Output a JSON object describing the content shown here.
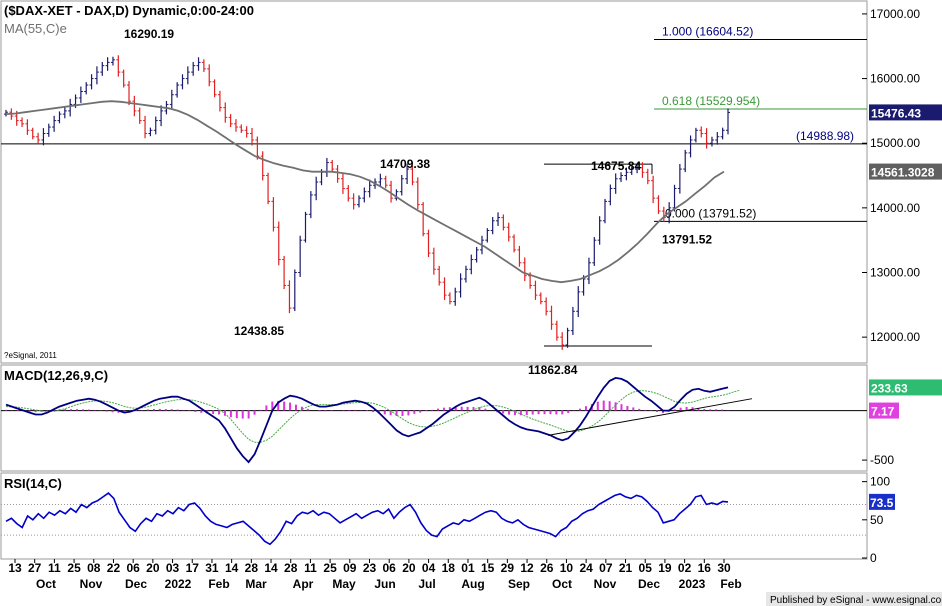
{
  "chart_data": [
    {
      "type": "candlestick",
      "title": "($DAX-XET - DAX,D) Dynamic,0:00-24:00",
      "indicator": "MA(55,C)e",
      "watermark": "?eSignal, 2011",
      "ylim": [
        11600,
        17200
      ],
      "yticks": [
        17000,
        16000,
        15000,
        14000,
        13000,
        12000
      ],
      "ytick_labels": [
        "17000.00",
        "16000.00",
        "15000.00",
        "14000.00",
        "13000.00",
        "12000.00"
      ],
      "last_price": {
        "value": 15476.43,
        "label": "15476.43"
      },
      "ma_value": {
        "value": 14561.3028,
        "label": "14561.3028"
      },
      "fib_levels": [
        {
          "ratio_label": "1.000 (16604.52)",
          "value": 16604.52
        },
        {
          "ratio_label": "0.618 (15529.954)",
          "value": 15529.954
        },
        {
          "ratio_label": "0.000 (13791.52)",
          "value": 13791.52
        }
      ],
      "horizontal_line": {
        "value": 14988.98,
        "label": "(14988.98)"
      },
      "annotations": [
        {
          "label": "16290.19",
          "value": 16290.19
        },
        {
          "label": "12438.85",
          "value": 12438.85
        },
        {
          "label": "14709.38",
          "value": 14709.38
        },
        {
          "label": "14675.84",
          "value": 14675.84
        },
        {
          "label": "13791.52",
          "value": 13791.52
        },
        {
          "label": "11862.84",
          "value": 11862.84
        }
      ],
      "support_lines": [
        {
          "value": 14675.84
        },
        {
          "value": 11862.84
        }
      ],
      "closes": [
        15480,
        15420,
        15350,
        15300,
        15200,
        15100,
        15050,
        15150,
        15250,
        15350,
        15450,
        15500,
        15600,
        15700,
        15800,
        15900,
        16000,
        16100,
        16200,
        16250,
        16290,
        16100,
        15900,
        15650,
        15500,
        15350,
        15150,
        15200,
        15350,
        15500,
        15600,
        15750,
        15900,
        16000,
        16100,
        16200,
        16250,
        16150,
        15950,
        15750,
        15550,
        15400,
        15300,
        15250,
        15200,
        15150,
        15050,
        14800,
        14500,
        14100,
        13700,
        13200,
        12800,
        12450,
        13000,
        13500,
        13900,
        14200,
        14400,
        14550,
        14700,
        14600,
        14450,
        14300,
        14150,
        14050,
        14150,
        14250,
        14350,
        14400,
        14450,
        14350,
        14150,
        14250,
        14450,
        14600,
        14400,
        14050,
        13600,
        13300,
        13050,
        12850,
        12650,
        12550,
        12700,
        12900,
        13050,
        13200,
        13350,
        13500,
        13650,
        13800,
        13850,
        13700,
        13550,
        13350,
        13150,
        12950,
        12800,
        12650,
        12550,
        12400,
        12200,
        12000,
        11880,
        12100,
        12400,
        12700,
        12900,
        13150,
        13500,
        13800,
        14100,
        14300,
        14450,
        14500,
        14550,
        14600,
        14620,
        14550,
        14420,
        14150,
        13950,
        13850,
        14000,
        14300,
        14600,
        14850,
        15050,
        15200,
        15150,
        15000,
        15050,
        15100,
        15200,
        15476
      ],
      "ma55": [
        15450,
        15460,
        15480,
        15500,
        15520,
        15540,
        15560,
        15580,
        15600,
        15620,
        15640,
        15650,
        15640,
        15620,
        15600,
        15580,
        15560,
        15540,
        15500,
        15440,
        15360,
        15270,
        15180,
        15080,
        14980,
        14890,
        14800,
        14740,
        14690,
        14650,
        14620,
        14580,
        14560,
        14560,
        14560,
        14540,
        14520,
        14480,
        14420,
        14340,
        14250,
        14150,
        14050,
        13960,
        13880,
        13800,
        13720,
        13640,
        13560,
        13480,
        13400,
        13300,
        13200,
        13100,
        13000,
        12950,
        12900,
        12870,
        12850,
        12870,
        12900,
        12960,
        13020,
        13100,
        13200,
        13320,
        13450,
        13600,
        13760,
        13900,
        14000,
        14100,
        14220,
        14340,
        14470,
        14561
      ],
      "ma55_start_index": 60
    },
    {
      "type": "macd",
      "title": "MACD(12,26,9,C)",
      "ylim": [
        -600,
        450
      ],
      "ytick_labels": [
        "-500"
      ],
      "yticks": [
        -500
      ],
      "macd_value": {
        "value": 233.63,
        "label": "233.63"
      },
      "hist_value": {
        "value": 7.17,
        "label": "7.17"
      },
      "macd": [
        60,
        40,
        20,
        0,
        -20,
        -40,
        -40,
        -20,
        10,
        40,
        60,
        80,
        100,
        110,
        120,
        110,
        90,
        60,
        30,
        0,
        -20,
        -10,
        10,
        40,
        70,
        100,
        120,
        130,
        140,
        140,
        120,
        100,
        60,
        20,
        -20,
        -60,
        -100,
        -180,
        -280,
        -380,
        -460,
        -520,
        -440,
        -300,
        -150,
        0,
        80,
        120,
        150,
        140,
        120,
        90,
        60,
        40,
        40,
        50,
        60,
        80,
        90,
        100,
        90,
        70,
        30,
        -20,
        -80,
        -140,
        -200,
        -240,
        -260,
        -240,
        -220,
        -180,
        -140,
        -90,
        -40,
        0,
        40,
        70,
        90,
        110,
        130,
        100,
        50,
        0,
        -50,
        -100,
        -140,
        -170,
        -190,
        -200,
        -210,
        -230,
        -250,
        -280,
        -300,
        -280,
        -220,
        -150,
        -60,
        40,
        140,
        230,
        300,
        330,
        320,
        290,
        240,
        190,
        140,
        100,
        50,
        0,
        0,
        40,
        110,
        170,
        210,
        220,
        200,
        190,
        205,
        220,
        234
      ],
      "signal": [
        40,
        38,
        34,
        26,
        16,
        6,
        -4,
        -10,
        -8,
        4,
        20,
        40,
        60,
        76,
        90,
        98,
        98,
        92,
        80,
        62,
        42,
        28,
        24,
        28,
        40,
        56,
        72,
        88,
        100,
        110,
        112,
        110,
        100,
        84,
        64,
        40,
        12,
        -30,
        -90,
        -160,
        -230,
        -290,
        -320,
        -320,
        -300,
        -260,
        -200,
        -140,
        -80,
        -30,
        10,
        40,
        60,
        60,
        60,
        60,
        60,
        66,
        72,
        80,
        84,
        82,
        74,
        56,
        30,
        -4,
        -44,
        -84,
        -120,
        -146,
        -162,
        -166,
        -160,
        -146,
        -124,
        -98,
        -70,
        -42,
        -16,
        8,
        30,
        46,
        52,
        48,
        36,
        16,
        -8,
        -36,
        -62,
        -86,
        -106,
        -126,
        -146,
        -168,
        -190,
        -210,
        -214,
        -206,
        -186,
        -156,
        -116,
        -64,
        -4,
        56,
        112,
        156,
        186,
        200,
        200,
        190,
        172,
        148,
        120,
        92,
        78,
        76,
        86,
        104,
        122,
        136,
        144,
        154,
        168,
        190,
        205
      ],
      "histogram": [
        20,
        5,
        -14,
        -26,
        -36,
        -46,
        -36,
        -10,
        18,
        36,
        40,
        40,
        40,
        34,
        30,
        12,
        -8,
        -32,
        -50,
        -62,
        -62,
        -38,
        -14,
        12,
        30,
        44,
        48,
        42,
        40,
        30,
        8,
        -10,
        -40,
        -64,
        -84,
        -100,
        -112,
        -150,
        -190,
        -220,
        -230,
        -230,
        -120,
        20,
        150,
        260,
        280,
        260,
        230,
        170,
        110,
        50,
        0,
        -20,
        -20,
        -10,
        0,
        14,
        18,
        20,
        6,
        -12,
        -44,
        -76,
        -110,
        -136,
        -156,
        -156,
        -140,
        -94,
        -58,
        -14,
        20,
        56,
        84,
        98,
        110,
        112,
        106,
        102,
        100,
        54,
        -2,
        -48,
        -86,
        -116,
        -132,
        -134,
        -128,
        -114,
        -104,
        -104,
        -104,
        -112,
        -110,
        -70,
        -6,
        56,
        126,
        190,
        256,
        288,
        270,
        238,
        184,
        134,
        90,
        50,
        18,
        -8,
        -42,
        -72,
        -38,
        34,
        84,
        106,
        98,
        78,
        46,
        37,
        37,
        30,
        7
      ]
    },
    {
      "type": "rsi",
      "title": "RSI(14,C)",
      "ylim": [
        0,
        110
      ],
      "yticks": [
        100,
        50,
        0
      ],
      "ytick_labels": [
        "100",
        "50",
        "0"
      ],
      "rsi_value": {
        "value": 73.5,
        "label": "73.5"
      },
      "overbought": 70,
      "oversold": 30,
      "values": [
        48,
        52,
        45,
        40,
        55,
        50,
        58,
        52,
        60,
        56,
        62,
        58,
        65,
        60,
        70,
        66,
        72,
        75,
        80,
        85,
        78,
        60,
        50,
        40,
        35,
        45,
        52,
        48,
        58,
        55,
        62,
        58,
        66,
        62,
        70,
        72,
        65,
        55,
        48,
        44,
        42,
        40,
        44,
        46,
        48,
        42,
        36,
        30,
        22,
        18,
        25,
        35,
        48,
        45,
        55,
        60,
        58,
        62,
        56,
        60,
        58,
        52,
        46,
        50,
        54,
        58,
        52,
        56,
        60,
        62,
        58,
        64,
        52,
        60,
        66,
        70,
        60,
        46,
        36,
        30,
        28,
        38,
        42,
        46,
        44,
        50,
        48,
        52,
        56,
        60,
        62,
        60,
        52,
        48,
        46,
        50,
        44,
        40,
        38,
        36,
        34,
        32,
        28,
        36,
        40,
        48,
        52,
        58,
        62,
        64,
        70,
        74,
        78,
        82,
        84,
        80,
        78,
        82,
        80,
        74,
        66,
        60,
        46,
        48,
        50,
        58,
        64,
        70,
        80,
        82,
        70,
        72,
        70,
        74,
        73.5
      ]
    }
  ],
  "xaxis": {
    "day_labels": [
      "13",
      "27",
      "11",
      "25",
      "08",
      "22",
      "06",
      "20",
      "03",
      "17",
      "31",
      "14",
      "28",
      "14",
      "28",
      "11",
      "25",
      "09",
      "23",
      "06",
      "20",
      "04",
      "18",
      "01",
      "15",
      "29",
      "12",
      "26",
      "10",
      "24",
      "07",
      "21",
      "05",
      "19",
      "02",
      "16",
      "30"
    ],
    "month_labels": [
      "Oct",
      "Nov",
      "Dec",
      "2022",
      "Feb",
      "Mar",
      "Apr",
      "May",
      "Jun",
      "Jul",
      "Aug",
      "Sep",
      "Oct",
      "Nov",
      "Dec",
      "2023",
      "Feb"
    ]
  },
  "footer": {
    "publisher": "Published by eSignal - www.esignal.com"
  },
  "colors": {
    "up": "#1a1a6e",
    "down": "#e02020",
    "ma": "#707070",
    "fib_label": "#000080",
    "fib_618": "#3a9a3a",
    "macd_line": "#000080",
    "signal_line": "#44aa44",
    "histogram": "#dd33dd",
    "rsi_line": "#0000cc",
    "last_price_bg": "#1a1a6e",
    "ma_bg": "#606060",
    "macd_bg": "#2ebc72",
    "hist_bg": "#e040e0",
    "rsi_bg": "#1a2ec8"
  }
}
